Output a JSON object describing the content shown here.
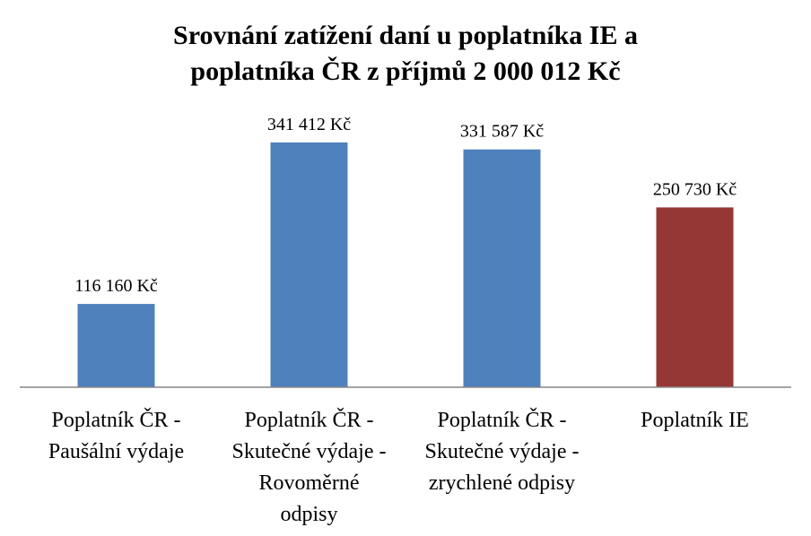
{
  "chart_data": {
    "type": "bar",
    "title_lines": [
      "Srovnání zatížení daní u poplatníka IE a",
      "poplatníka ČR z příjmů 2 000 012 Kč"
    ],
    "xlabel": "",
    "ylabel": "",
    "ylim": [
      0,
      380000
    ],
    "grid": false,
    "legend": "none",
    "categories": [
      [
        "Poplatník ČR -",
        "Paušální výdaje"
      ],
      [
        "Poplatník ČR -",
        "Skutečné výdaje -",
        "Rovoměrné",
        "odpisy"
      ],
      [
        "Poplatník ČR -",
        "Skutečné výdaje -",
        "zrychlené odpisy"
      ],
      [
        "Poplatník IE"
      ]
    ],
    "values": [
      116160,
      341412,
      331587,
      250730
    ],
    "value_labels": [
      "116 160 Kč",
      "341 412 Kč",
      "331 587 Kč",
      "250 730 Kč"
    ],
    "colors": [
      "#4F81BD",
      "#4F81BD",
      "#4F81BD",
      "#953735"
    ]
  }
}
